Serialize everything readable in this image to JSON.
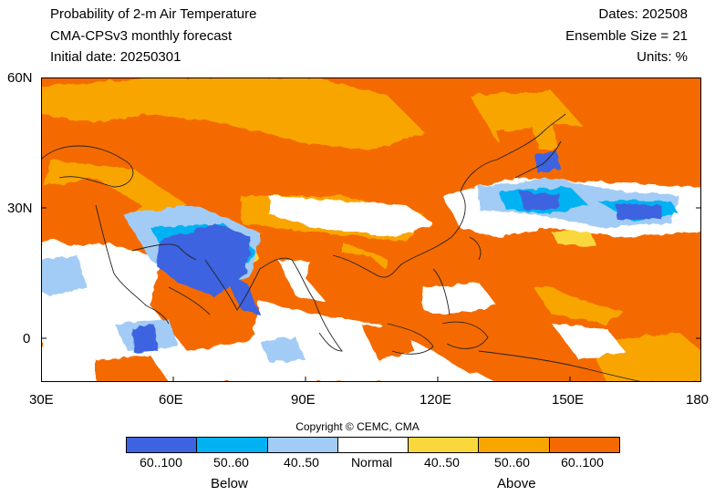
{
  "header": {
    "title": "Probability of 2-m Air Temperature",
    "model": "CMA-CPSv3 monthly forecast",
    "initial_date": "Initial date: 20250301",
    "dates": "Dates: 202508",
    "ensemble": "Ensemble Size = 21",
    "units": "Units: %"
  },
  "map": {
    "x_ticks": [
      "30E",
      "60E",
      "90E",
      "120E",
      "150E",
      "180"
    ],
    "y_ticks": [
      "60N",
      "30N",
      "0"
    ],
    "copyright": "Copyright © CEMC, CMA"
  },
  "legend": {
    "categories": [
      {
        "label": "60..100",
        "color": "#3d63e0"
      },
      {
        "label": "50..60",
        "color": "#00b2f2"
      },
      {
        "label": "40..50",
        "color": "#a2ccf5"
      },
      {
        "label": "Normal",
        "color": "#ffffff"
      },
      {
        "label": "40..50",
        "color": "#fad83c"
      },
      {
        "label": "50..60",
        "color": "#f9a500"
      },
      {
        "label": "60..100",
        "color": "#f46a00"
      }
    ],
    "below_label": "Below",
    "above_label": "Above"
  },
  "colors": {
    "above_strong": "#f46a00",
    "above_mid": "#f9a500",
    "above_weak": "#fad83c",
    "normal": "#ffffff",
    "below_weak": "#a2ccf5",
    "below_mid": "#00b2f2",
    "below_strong": "#3d63e0",
    "coastline": "#222222"
  }
}
